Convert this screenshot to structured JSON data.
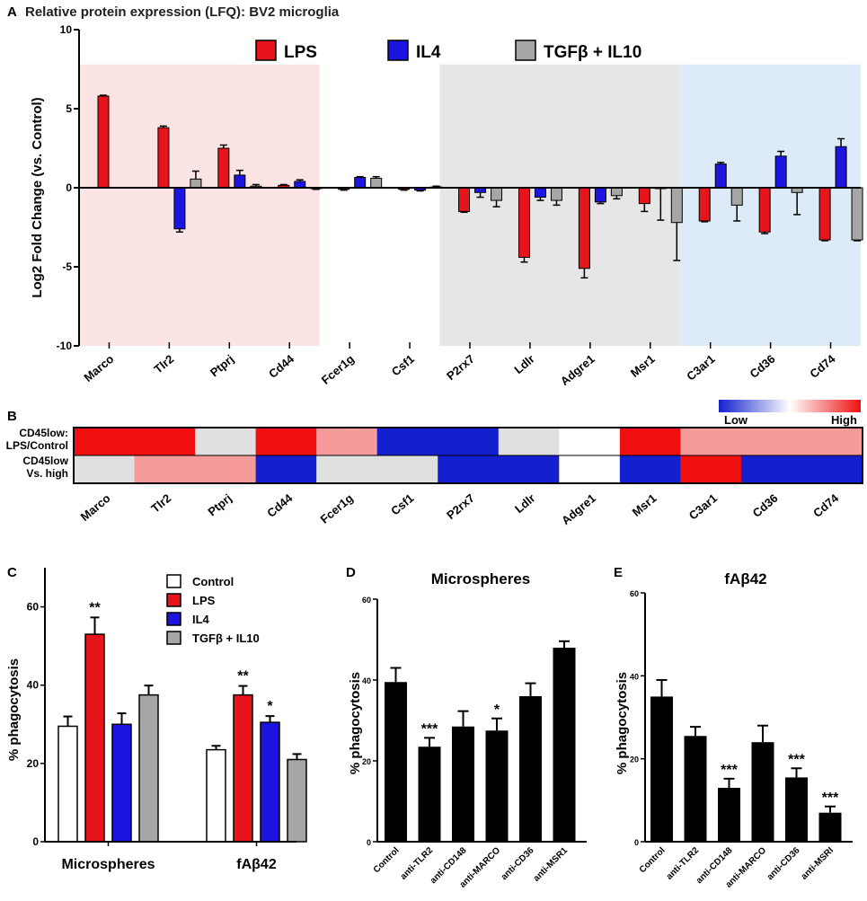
{
  "colors": {
    "LPS": "#e8141b",
    "IL4": "#1c14e0",
    "TGF": "#a6a6a6",
    "Control": "#ffffff",
    "black": "#000000",
    "bg_pink": "#fce4e4",
    "bg_gray": "#e6e6e6",
    "bg_blue": "#ddeaf8",
    "heat_high": "#f01010",
    "heat_midhigh": "#f79a9a",
    "heat_none": "#e0e0e0",
    "heat_low": "#1420d0",
    "heat_white": "#ffffff"
  },
  "chart_data": [
    {
      "panel": "A",
      "type": "bar",
      "title": "Relative protein expression (LFQ): BV2 microglia",
      "ylabel": "Log2 Fold Change (vs.  Control)",
      "ylim": [
        -10,
        10
      ],
      "yticks": [
        "10",
        "5",
        "0",
        "-5",
        "-10"
      ],
      "categories": [
        "Marco",
        "Tlr2",
        "Ptprj",
        "Cd44",
        "Fcer1g",
        "Csf1",
        "P2rx7",
        "Ldlr",
        "Adgre1",
        "Msr1",
        "C3ar1",
        "Cd36",
        "Cd74"
      ],
      "shaded_regions": [
        {
          "from": 0,
          "to": 3,
          "color": "bg_pink"
        },
        {
          "from": 6,
          "to": 9,
          "color": "bg_gray"
        },
        {
          "from": 10,
          "to": 12,
          "color": "bg_blue"
        }
      ],
      "legend": [
        "LPS",
        "IL4",
        "TGFβ + IL10"
      ],
      "series": [
        {
          "name": "LPS",
          "color": "LPS",
          "values": [
            5.8,
            3.8,
            2.5,
            0.15,
            -0.1,
            -0.1,
            -1.5,
            -4.4,
            -5.1,
            -1.0,
            -2.1,
            -2.8,
            -3.3
          ],
          "errors": [
            0.05,
            0.1,
            0.2,
            0.05,
            0.05,
            0.05,
            0.05,
            0.3,
            0.6,
            0.5,
            0.05,
            0.1,
            0.05
          ]
        },
        {
          "name": "IL4",
          "color": "IL4",
          "values": [
            0,
            -2.6,
            0.8,
            0.4,
            0.65,
            -0.15,
            -0.3,
            -0.6,
            -0.9,
            -0.05,
            1.5,
            2.0,
            2.6
          ],
          "errors": [
            0,
            0.2,
            0.3,
            0.1,
            0.05,
            0.05,
            0.3,
            0.2,
            0.1,
            2.0,
            0.1,
            0.3,
            0.5
          ]
        },
        {
          "name": "TGFβ + IL10",
          "color": "TGF",
          "values": [
            0,
            0.55,
            0.1,
            -0.05,
            0.6,
            0.05,
            -0.8,
            -0.8,
            -0.5,
            -2.2,
            -1.1,
            -0.3,
            -3.3
          ],
          "errors": [
            0,
            0.5,
            0.1,
            0.05,
            0.1,
            0.05,
            0.4,
            0.3,
            0.2,
            2.4,
            1.0,
            1.4,
            0.05
          ]
        }
      ]
    },
    {
      "panel": "B",
      "type": "heatmap",
      "legend_low": "Low",
      "legend_high": "High",
      "columns": [
        "Marco",
        "Tlr2",
        "Ptprj",
        "Cd44",
        "Fcer1g",
        "Csf1",
        "P2rx7",
        "Ldlr",
        "Adgre1",
        "Msr1",
        "C3ar1",
        "Cd36",
        "Cd74"
      ],
      "rows": [
        {
          "label1": "CD45low:",
          "label2": "LPS/Control",
          "cells": [
            "heat_high",
            "heat_high",
            "heat_none",
            "heat_high",
            "heat_midhigh",
            "heat_low",
            "heat_low",
            "heat_none",
            "heat_white",
            "heat_high",
            "heat_midhigh",
            "heat_midhigh",
            "heat_midhigh"
          ]
        },
        {
          "label1": "CD45low",
          "label2": "Vs. high",
          "cells": [
            "heat_none",
            "heat_midhigh",
            "heat_midhigh",
            "heat_low",
            "heat_none",
            "heat_none",
            "heat_low",
            "heat_low",
            "heat_white",
            "heat_low",
            "heat_high",
            "heat_low",
            "heat_low"
          ]
        }
      ]
    },
    {
      "panel": "C",
      "type": "bar",
      "ylabel": "% phagocytosis",
      "ylim": [
        0,
        70
      ],
      "yticks": [
        "0",
        "20",
        "40",
        "60"
      ],
      "categories": [
        "Microspheres",
        "fAβ42"
      ],
      "legend": [
        "Control",
        "LPS",
        "IL4",
        "TGFβ + IL10"
      ],
      "series": [
        {
          "name": "Control",
          "color": "Control",
          "values": [
            29.5,
            23.5
          ],
          "errors": [
            2.5,
            1.0
          ],
          "stars": [
            "",
            ""
          ]
        },
        {
          "name": "LPS",
          "color": "LPS",
          "values": [
            53,
            37.5
          ],
          "errors": [
            4.3,
            2.3
          ],
          "stars": [
            "**",
            "**"
          ]
        },
        {
          "name": "IL4",
          "color": "IL4",
          "values": [
            30,
            30.5
          ],
          "errors": [
            2.8,
            1.6
          ],
          "stars": [
            "",
            "*"
          ]
        },
        {
          "name": "TGFβ + IL10",
          "color": "TGF",
          "values": [
            37.5,
            21
          ],
          "errors": [
            2.4,
            1.4
          ],
          "stars": [
            "",
            ""
          ]
        }
      ]
    },
    {
      "panel": "D",
      "type": "bar",
      "title": "Microspheres",
      "ylabel": "% phagocytosis",
      "ylim": [
        0,
        60
      ],
      "yticks": [
        "0",
        "20",
        "40",
        "60"
      ],
      "categories": [
        "Control",
        "anti-TLR2",
        "anti-CD148",
        "anti-MARCO",
        "anti-CD36",
        "anti-MSR1"
      ],
      "values": [
        39.5,
        23.5,
        28.5,
        27.5,
        36,
        48
      ],
      "errors": [
        3.5,
        2.2,
        3.8,
        3.0,
        3.2,
        1.6
      ],
      "stars": [
        "",
        "***",
        "",
        "*",
        "",
        ""
      ]
    },
    {
      "panel": "E",
      "type": "bar",
      "title": "fAβ42",
      "ylabel": "% phagocytosis",
      "ylim": [
        0,
        60
      ],
      "yticks": [
        "0",
        "20",
        "40",
        "60"
      ],
      "categories": [
        "Control",
        "anti-TLR2",
        "anti-CD148",
        "anti-MARCO",
        "anti-CD36",
        "anti-MSRI"
      ],
      "values": [
        35,
        25.5,
        13,
        24,
        15.5,
        7
      ],
      "errors": [
        4.0,
        2.2,
        2.2,
        4.0,
        2.2,
        1.5
      ],
      "stars": [
        "",
        "",
        "***",
        "",
        "***",
        "***"
      ]
    }
  ]
}
